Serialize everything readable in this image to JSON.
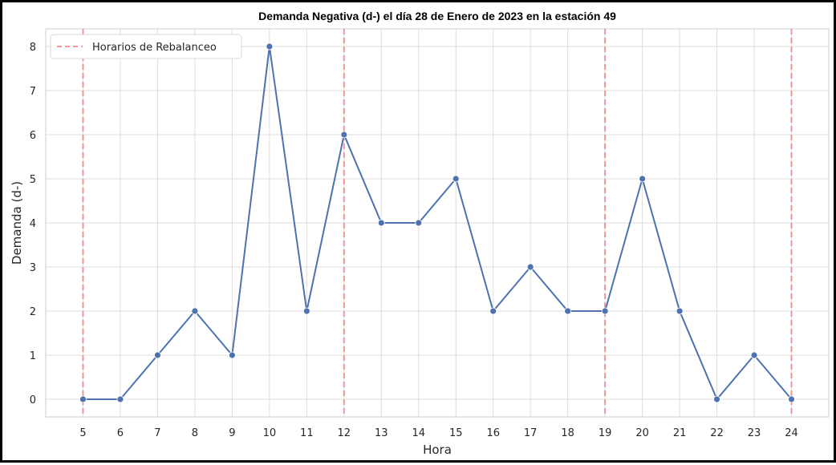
{
  "chart_data": {
    "type": "line",
    "title": "Demanda Negativa (d-) el día 28 de Enero de 2023 en la estación 49",
    "xlabel": "Hora",
    "ylabel": "Demanda (d-)",
    "x": [
      5,
      6,
      7,
      8,
      9,
      10,
      11,
      12,
      13,
      14,
      15,
      16,
      17,
      18,
      19,
      20,
      21,
      22,
      23,
      24
    ],
    "series": [
      {
        "values": [
          0,
          0,
          1,
          2,
          1,
          8,
          2,
          6,
          4,
          4,
          5,
          2,
          3,
          2,
          2,
          5,
          2,
          0,
          1,
          0
        ],
        "color": "#4c72b0"
      }
    ],
    "rebalance_lines": {
      "name": "Horarios de Rebalanceo",
      "x": [
        5,
        12,
        19,
        24
      ],
      "color": "#f08080"
    },
    "xlim": [
      4,
      25
    ],
    "ylim": [
      -0.4,
      8.4
    ],
    "yticks": [
      0,
      1,
      2,
      3,
      4,
      5,
      6,
      7,
      8
    ],
    "grid": true,
    "legend": "top-left"
  }
}
